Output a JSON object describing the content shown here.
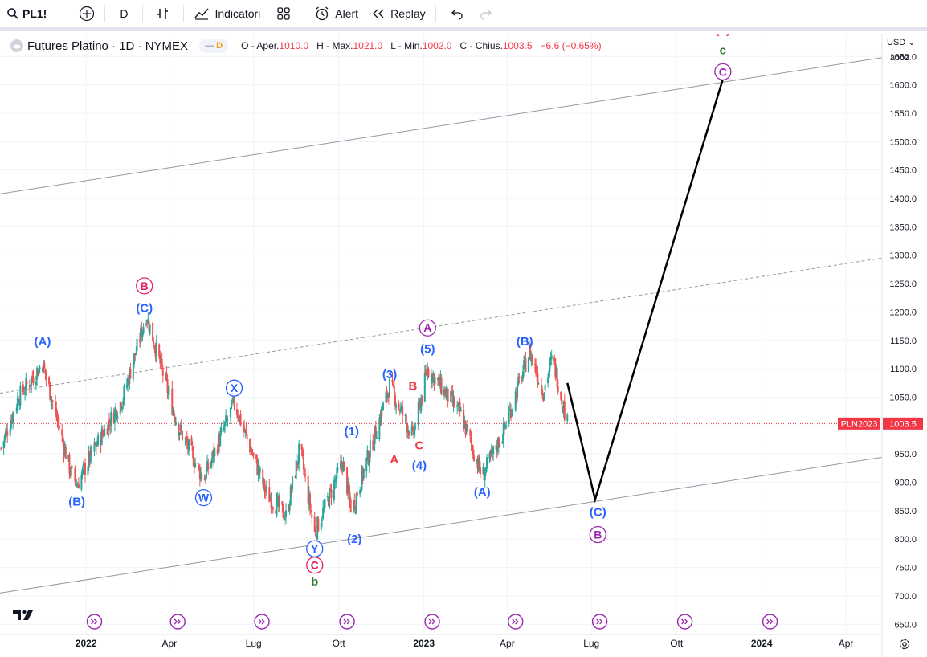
{
  "toolbar": {
    "symbol": "PL1!",
    "interval": "D",
    "indicators_label": "Indicatori",
    "alert_label": "Alert",
    "replay_label": "Replay"
  },
  "legend": {
    "title": "Futures Platino · 1D · NYMEX",
    "badge": "D",
    "open_label": "O - Aper.",
    "open": "1010.0",
    "high_label": "H - Max.",
    "high": "1021.0",
    "low_label": "L - Min.",
    "low": "1002.0",
    "close_label": "C - Chius.",
    "close": "1003.5",
    "change": "−6.6 (−0.65%)"
  },
  "axis": {
    "currency": "USD",
    "unit": "apoz",
    "last_price_label": "1003.5",
    "symbol_tag": "PLN2023"
  },
  "colors": {
    "up": "#26a69a",
    "down": "#ef5350",
    "blue_label": "#2962ff",
    "red_label": "#f23645",
    "purple_label": "#9c27b0",
    "green_label": "#2e7d32",
    "pink_label": "#e91e63",
    "price_line": "#f23645"
  },
  "chart_data": {
    "type": "candlestick",
    "y_ticks": [
      650,
      700,
      750,
      800,
      850,
      900,
      950,
      1000,
      1050,
      1100,
      1150,
      1200,
      1250,
      1300,
      1350,
      1400,
      1450,
      1500,
      1550,
      1600,
      1650
    ],
    "y_tick_labels": [
      "650.0",
      "700.0",
      "750.0",
      "800.0",
      "850.0",
      "900.0",
      "950.0",
      "1000.0",
      "1050.0",
      "1100.0",
      "1150.0",
      "1200.0",
      "1250.0",
      "1300.0",
      "1350.0",
      "1400.0",
      "1450.0",
      "1500.0",
      "1550.0",
      "1600.0",
      "1650.0"
    ],
    "ylim": [
      632,
      1690
    ],
    "x_ticks": [
      {
        "date": "2022-01-01",
        "label": "2022"
      },
      {
        "date": "2022-04-01",
        "label": "Apr"
      },
      {
        "date": "2022-07-01",
        "label": "Lug"
      },
      {
        "date": "2022-10-01",
        "label": "Ott"
      },
      {
        "date": "2023-01-01",
        "label": "2023"
      },
      {
        "date": "2023-04-01",
        "label": "Apr"
      },
      {
        "date": "2023-07-01",
        "label": "Lug"
      },
      {
        "date": "2023-10-01",
        "label": "Ott"
      },
      {
        "date": "2024-01-01",
        "label": "2024"
      },
      {
        "date": "2024-04-01",
        "label": "Apr"
      }
    ],
    "xlim": [
      "2021-09-30",
      "2024-05-10"
    ],
    "price_path": [
      {
        "date": "2021-10-01",
        "price": 960
      },
      {
        "date": "2021-10-20",
        "price": 1050
      },
      {
        "date": "2021-11-15",
        "price": 1110
      },
      {
        "date": "2021-12-15",
        "price": 920
      },
      {
        "date": "2021-12-22",
        "price": 895
      },
      {
        "date": "2022-01-10",
        "price": 960
      },
      {
        "date": "2022-02-10",
        "price": 1050
      },
      {
        "date": "2022-03-07",
        "price": 1195
      },
      {
        "date": "2022-04-10",
        "price": 1000
      },
      {
        "date": "2022-05-08",
        "price": 905
      },
      {
        "date": "2022-06-10",
        "price": 1040
      },
      {
        "date": "2022-07-15",
        "price": 880
      },
      {
        "date": "2022-08-05",
        "price": 840
      },
      {
        "date": "2022-08-20",
        "price": 960
      },
      {
        "date": "2022-09-05",
        "price": 810
      },
      {
        "date": "2022-10-05",
        "price": 935
      },
      {
        "date": "2022-10-15",
        "price": 850
      },
      {
        "date": "2022-11-25",
        "price": 1070
      },
      {
        "date": "2022-12-20",
        "price": 980
      },
      {
        "date": "2023-01-05",
        "price": 1100
      },
      {
        "date": "2023-02-10",
        "price": 1020
      },
      {
        "date": "2023-03-05",
        "price": 910
      },
      {
        "date": "2023-03-28",
        "price": 990
      },
      {
        "date": "2023-04-25",
        "price": 1130
      },
      {
        "date": "2023-05-10",
        "price": 1060
      },
      {
        "date": "2023-05-20",
        "price": 1120
      },
      {
        "date": "2023-06-05",
        "price": 1003.5
      }
    ],
    "last_price": 1003.5,
    "projection": [
      {
        "date": "2023-06-05",
        "price": 1075
      },
      {
        "date": "2023-07-05",
        "price": 870
      },
      {
        "date": "2023-11-20",
        "price": 1610
      }
    ],
    "channel_lines": [
      {
        "style": "solid",
        "from": {
          "date": "2021-09-30",
          "price": 1408
        },
        "to": {
          "date": "2024-05-10",
          "price": 1648
        }
      },
      {
        "style": "dashed",
        "from": {
          "date": "2021-09-30",
          "price": 1057
        },
        "to": {
          "date": "2024-05-10",
          "price": 1295
        }
      },
      {
        "style": "solid",
        "from": {
          "date": "2021-09-30",
          "price": 705
        },
        "to": {
          "date": "2024-05-10",
          "price": 944
        }
      }
    ],
    "wave_labels": [
      {
        "text": "(A)",
        "date": "2021-11-15",
        "price": 1148,
        "color": "blue",
        "circle": false
      },
      {
        "text": "(B)",
        "date": "2021-12-22",
        "price": 866,
        "color": "blue",
        "circle": false
      },
      {
        "text": "B",
        "date": "2022-03-05",
        "price": 1246,
        "color": "pink",
        "circle": true
      },
      {
        "text": "(C)",
        "date": "2022-03-05",
        "price": 1207,
        "color": "blue",
        "circle": false
      },
      {
        "text": "W",
        "date": "2022-05-08",
        "price": 873,
        "color": "blue",
        "circle": true
      },
      {
        "text": "X",
        "date": "2022-06-10",
        "price": 1066,
        "color": "blue",
        "circle": true
      },
      {
        "text": "Y",
        "date": "2022-09-05",
        "price": 783,
        "color": "blue",
        "circle": true
      },
      {
        "text": "C",
        "date": "2022-09-05",
        "price": 754,
        "color": "pink",
        "circle": true
      },
      {
        "text": "b",
        "date": "2022-09-05",
        "price": 725,
        "color": "green",
        "circle": false
      },
      {
        "text": "(2)",
        "date": "2022-10-18",
        "price": 800,
        "color": "blue",
        "circle": false
      },
      {
        "text": "(1)",
        "date": "2022-10-15",
        "price": 990,
        "color": "blue",
        "circle": false
      },
      {
        "text": "(3)",
        "date": "2022-11-25",
        "price": 1090,
        "color": "blue",
        "circle": false
      },
      {
        "text": "A",
        "date": "2022-11-30",
        "price": 940,
        "color": "red",
        "circle": false
      },
      {
        "text": "B",
        "date": "2022-12-20",
        "price": 1070,
        "color": "red",
        "circle": false
      },
      {
        "text": "C",
        "date": "2022-12-27",
        "price": 965,
        "color": "red",
        "circle": false
      },
      {
        "text": "(4)",
        "date": "2022-12-27",
        "price": 930,
        "color": "blue",
        "circle": false
      },
      {
        "text": "(5)",
        "date": "2023-01-05",
        "price": 1135,
        "color": "blue",
        "circle": false
      },
      {
        "text": "A",
        "date": "2023-01-05",
        "price": 1172,
        "color": "purple",
        "circle": true
      },
      {
        "text": "(A)",
        "date": "2023-03-05",
        "price": 883,
        "color": "blue",
        "circle": false
      },
      {
        "text": "(B)",
        "date": "2023-04-20",
        "price": 1148,
        "color": "blue",
        "circle": false
      },
      {
        "text": "(C)",
        "date": "2023-07-08",
        "price": 848,
        "color": "blue",
        "circle": false
      },
      {
        "text": "B",
        "date": "2023-07-08",
        "price": 808,
        "color": "purple",
        "circle": true
      },
      {
        "text": "C",
        "date": "2023-11-20",
        "price": 1623,
        "color": "purple",
        "circle": true
      },
      {
        "text": "c",
        "date": "2023-11-20",
        "price": 1661,
        "color": "green",
        "circle": false
      },
      {
        "text": "(x)",
        "date": "2023-11-20",
        "price": 1697,
        "color": "red",
        "circle": false
      }
    ],
    "event_markers": [
      "2022-01-10",
      "2022-04-10",
      "2022-07-10",
      "2022-10-10",
      "2023-01-10",
      "2023-04-10",
      "2023-07-10",
      "2023-10-10",
      "2024-01-10"
    ]
  }
}
